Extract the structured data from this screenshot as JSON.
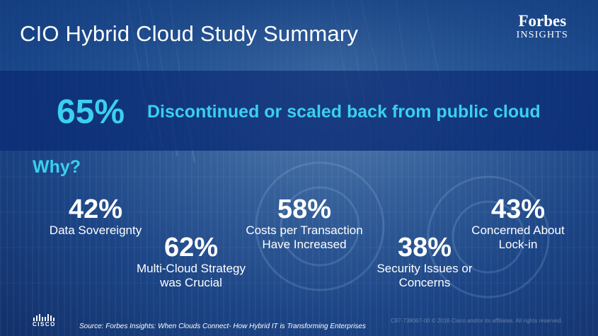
{
  "slide": {
    "title": "CIO Hybrid Cloud Study Summary",
    "brand": {
      "name": "Forbes",
      "sub": "INSIGHTS"
    },
    "headline": {
      "percent": "65%",
      "text": "Discontinued or scaled back from public cloud"
    },
    "why_label": "Why?",
    "stats": [
      {
        "percent": "42%",
        "label_lines": [
          "Data Sovereignty"
        ]
      },
      {
        "percent": "62%",
        "label_lines": [
          "Multi-Cloud Strategy",
          "was Crucial"
        ]
      },
      {
        "percent": "58%",
        "label_lines": [
          "Costs per Transaction",
          "Have Increased"
        ]
      },
      {
        "percent": "38%",
        "label_lines": [
          "Security Issues or",
          "Concerns"
        ]
      },
      {
        "percent": "43%",
        "label_lines": [
          "Concerned About",
          "Lock-in"
        ]
      }
    ],
    "footer": {
      "logo_text": "CISCO",
      "source": "Source: Forbes Insights: When Clouds Connect- How Hybrid IT is Transforming Enterprises",
      "copyright": "C97-738067-00 © 2016  Cisco and/or its affiliates. All rights reserved."
    }
  },
  "colors": {
    "accent": "#3ad0ee",
    "headline_band": "#0a2c76",
    "background": "#1c4586",
    "text": "#ffffff"
  }
}
